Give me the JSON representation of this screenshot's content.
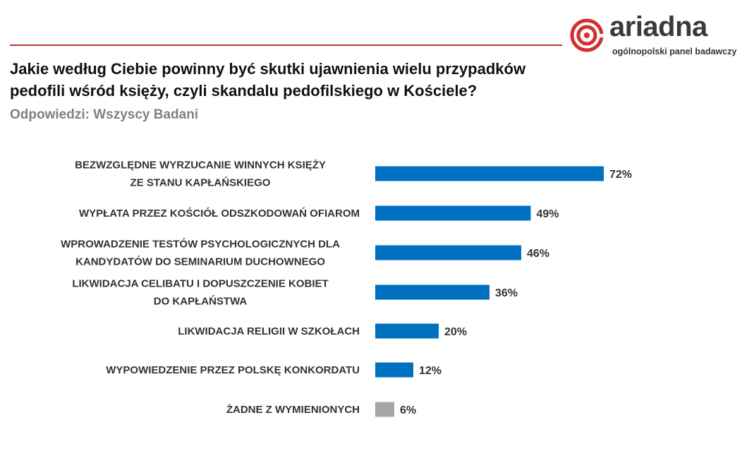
{
  "logo": {
    "word": "ariadna",
    "tagline": "ogólnopolski panel badawczy",
    "colors": {
      "ring": "#d32f2f",
      "text": "#3a3a3a"
    }
  },
  "title": "Jakie według Ciebie powinny być skutki ujawnienia wielu przypadków pedofili wśród księży, czyli skandalu pedofilskiego w Kościele?",
  "subtitle": "Odpowiedzi: Wszyscy Badani",
  "chart_data": {
    "type": "bar",
    "orientation": "horizontal",
    "categories": [
      [
        "BEZWZGLĘDNE WYRZUCANIE WINNYCH KSIĘŻY",
        "ZE STANU KAPŁAŃSKIEGO"
      ],
      [
        "WYPŁATA PRZEZ KOŚCIÓŁ ODSZKODOWAŃ OFIAROM"
      ],
      [
        "WPROWADZENIE TESTÓW PSYCHOLOGICZNYCH DLA",
        "KANDYDATÓW DO SEMINARIUM DUCHOWNEGO"
      ],
      [
        "LIKWIDACJA CELIBATU I DOPUSZCZENIE KOBIET",
        "DO KAPŁAŃSTWA"
      ],
      [
        "LIKWIDACJA RELIGII W SZKOŁACH"
      ],
      [
        "WYPOWIEDZENIE PRZEZ POLSKĘ KONKORDATU"
      ],
      [
        "ŻADNE Z WYMIENIONYCH"
      ]
    ],
    "values": [
      72,
      49,
      46,
      36,
      20,
      12,
      6
    ],
    "value_labels": [
      "72%",
      "49%",
      "46%",
      "36%",
      "20%",
      "12%",
      "6%"
    ],
    "colors": [
      "#0070c0",
      "#0070c0",
      "#0070c0",
      "#0070c0",
      "#0070c0",
      "#0070c0",
      "#a6a6a6"
    ],
    "xlim": [
      0,
      100
    ],
    "grid": false,
    "legend": "none"
  }
}
